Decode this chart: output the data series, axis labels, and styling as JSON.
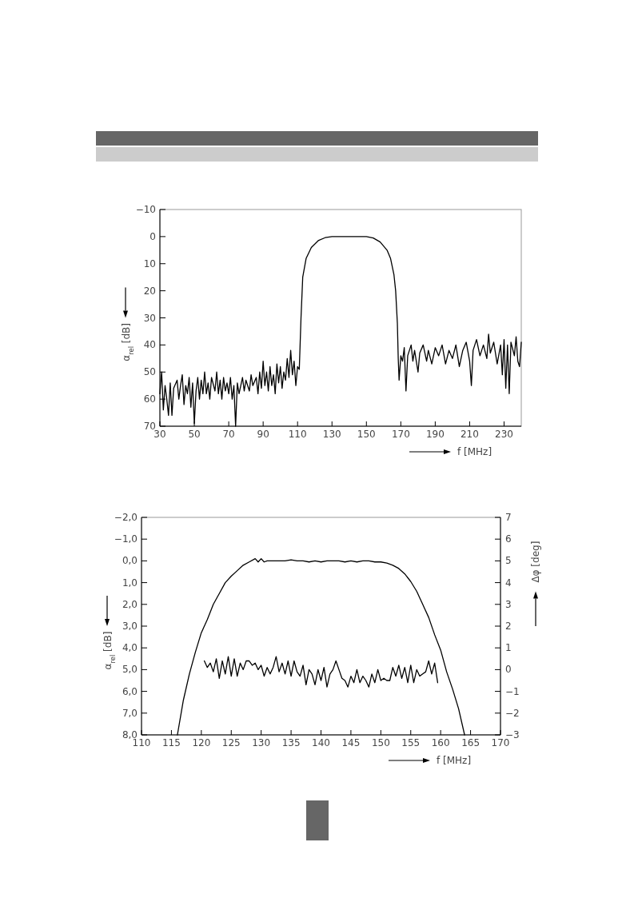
{
  "chart_data": [
    {
      "type": "line",
      "ylabel": "α$_{rel}$ [dB]",
      "xlabel": "f [MHz]",
      "xlim": [
        30,
        240
      ],
      "xticks": [
        30,
        50,
        70,
        90,
        110,
        130,
        150,
        170,
        190,
        210,
        230
      ],
      "ylim": [
        70,
        -10
      ],
      "yticks": [
        {
          "value": -10,
          "label": "−10"
        },
        0,
        10,
        20,
        30,
        40,
        50,
        60,
        70
      ],
      "series": [
        {
          "color": "#000000",
          "x": [
            30,
            31,
            32,
            33,
            34,
            35,
            36,
            37,
            38,
            40,
            41,
            42,
            43,
            44,
            45,
            46,
            47,
            48,
            49,
            50,
            51,
            52,
            53,
            54,
            55,
            56,
            57,
            58,
            59,
            60,
            62,
            63,
            64,
            65,
            66,
            67,
            68,
            69,
            70,
            71,
            72,
            73,
            74,
            75,
            76,
            78,
            79,
            80,
            82,
            83,
            84,
            86,
            87,
            88,
            89,
            90,
            91,
            92,
            93,
            94,
            95,
            96,
            97,
            98,
            99,
            100,
            101,
            102,
            103,
            104,
            105,
            106,
            107,
            108,
            109,
            110,
            111,
            112,
            113,
            115,
            118,
            122,
            126,
            130,
            140,
            150,
            154,
            158,
            162,
            164,
            166,
            167,
            168,
            168.5,
            169,
            170,
            171,
            172,
            173,
            174,
            176,
            177,
            178,
            180,
            181,
            183,
            185,
            186,
            188,
            190,
            192,
            194,
            196,
            198,
            200,
            202,
            204,
            206,
            208,
            210,
            211,
            212,
            214,
            216,
            218,
            220,
            221,
            222,
            224,
            226,
            228,
            229,
            230,
            231,
            232,
            233,
            234,
            236,
            237,
            238,
            239,
            240
          ],
          "values": [
            58,
            50,
            64,
            55,
            60,
            66,
            54,
            66,
            56,
            53,
            60,
            55,
            51,
            62,
            55,
            58,
            52,
            63,
            54,
            69,
            57,
            52,
            60,
            53,
            58,
            50,
            58,
            54,
            60,
            52,
            57,
            50,
            58,
            53,
            60,
            52,
            57,
            54,
            58,
            52,
            60,
            55,
            70,
            54,
            58,
            52,
            57,
            53,
            57,
            51,
            55,
            52,
            58,
            50,
            56,
            46,
            55,
            50,
            57,
            48,
            55,
            51,
            58,
            47,
            54,
            48,
            56,
            50,
            53,
            45,
            52,
            42,
            51,
            46,
            55,
            48,
            49,
            30,
            15,
            8,
            4,
            1.5,
            0.4,
            0,
            0,
            0,
            0.5,
            2,
            5,
            8,
            14,
            20,
            32,
            45,
            53,
            44,
            46,
            41,
            57,
            44,
            40,
            46,
            42,
            50,
            43,
            40,
            46,
            42,
            47,
            41,
            44,
            40,
            47,
            42,
            45,
            40,
            48,
            42,
            39,
            46,
            55,
            42,
            38,
            44,
            40,
            45,
            36,
            43,
            39,
            47,
            40,
            51,
            38,
            56,
            40,
            58,
            39,
            44,
            37,
            46,
            48,
            39
          ]
        }
      ]
    },
    {
      "type": "line",
      "ylabel": "α$_{rel}$ [dB]",
      "y2label": "Δφ [deg]",
      "xlabel": "f [MHz]",
      "xlim": [
        110,
        170
      ],
      "xticks": [
        110,
        115,
        120,
        125,
        130,
        135,
        140,
        145,
        150,
        155,
        160,
        165,
        170
      ],
      "ylim": [
        8,
        -2
      ],
      "yticks": [
        {
          "value": -2,
          "label": "−2,0"
        },
        {
          "value": -1,
          "label": "−1,0"
        },
        {
          "value": 0,
          "label": "0,0"
        },
        {
          "value": 1,
          "label": "1,0"
        },
        {
          "value": 2,
          "label": "2,0"
        },
        {
          "value": 3,
          "label": "3,0"
        },
        {
          "value": 4,
          "label": "4,0"
        },
        {
          "value": 5,
          "label": "5,0"
        },
        {
          "value": 6,
          "label": "6,0"
        },
        {
          "value": 7,
          "label": "7,0"
        },
        {
          "value": 8,
          "label": "8,0"
        }
      ],
      "y2lim": [
        -3,
        7
      ],
      "y2ticks": [
        {
          "value": -3,
          "label": "−3"
        },
        {
          "value": -2,
          "label": "−2"
        },
        {
          "value": -1,
          "label": "−1"
        },
        0,
        1,
        2,
        3,
        4,
        5,
        6,
        7
      ],
      "series": [
        {
          "color": "#000000",
          "x": [
            116,
            117,
            118,
            119,
            120,
            121,
            122,
            123,
            124,
            125,
            126,
            127,
            128,
            129,
            129.5,
            130,
            130.5,
            131,
            132,
            133,
            134,
            135,
            136,
            137,
            138,
            139,
            140,
            141,
            142,
            143,
            144,
            145,
            146,
            147,
            148,
            149,
            150,
            151,
            152,
            153,
            154,
            155,
            156,
            157,
            158,
            159,
            160,
            161,
            162,
            163,
            164
          ],
          "values": [
            8,
            6.4,
            5.2,
            4.2,
            3.3,
            2.7,
            2,
            1.5,
            1,
            0.7,
            0.45,
            0.2,
            0.05,
            -0.1,
            0.05,
            -0.1,
            0.05,
            0,
            0,
            0,
            0,
            -0.05,
            0,
            0,
            0.05,
            0,
            0.05,
            0,
            0,
            0,
            0.05,
            0,
            0.05,
            0,
            0,
            0.05,
            0.05,
            0.1,
            0.2,
            0.35,
            0.6,
            0.95,
            1.4,
            2,
            2.6,
            3.4,
            4.1,
            5.1,
            5.9,
            6.8,
            8
          ]
        },
        {
          "color": "#000000",
          "axis": "y2",
          "x": [
            120.5,
            121,
            121.5,
            122,
            122.5,
            123,
            123.5,
            124,
            124.5,
            125,
            125.5,
            126,
            126.5,
            127,
            127.5,
            128,
            128.5,
            129,
            129.5,
            130,
            130.5,
            131,
            131.5,
            132,
            132.5,
            133,
            133.5,
            134,
            134.5,
            135,
            135.5,
            136,
            136.5,
            137,
            137.5,
            138,
            138.5,
            139,
            139.5,
            140,
            140.5,
            141,
            141.5,
            142,
            142.5,
            143,
            143.5,
            144,
            144.5,
            145,
            145.5,
            146,
            146.5,
            147,
            147.5,
            148,
            148.5,
            149,
            149.5,
            150,
            150.5,
            151,
            151.5,
            152,
            152.5,
            153,
            153.5,
            154,
            154.5,
            155,
            155.5,
            156,
            156.5,
            157,
            157.5,
            158,
            158.5,
            159,
            159.5
          ],
          "values": [
            0.4,
            0.1,
            0.3,
            -0.1,
            0.5,
            -0.4,
            0.4,
            -0.2,
            0.6,
            -0.3,
            0.5,
            -0.3,
            0.3,
            0,
            0.4,
            0.4,
            0.2,
            0.3,
            0,
            0.2,
            -0.3,
            0.1,
            -0.2,
            0.1,
            0.6,
            -0.1,
            0.3,
            -0.2,
            0.4,
            -0.3,
            0.4,
            -0.1,
            -0.3,
            0.2,
            -0.7,
            0,
            -0.2,
            -0.7,
            0,
            -0.5,
            0.1,
            -0.8,
            -0.2,
            0,
            0.4,
            0,
            -0.4,
            -0.5,
            -0.8,
            -0.3,
            -0.6,
            0,
            -0.6,
            -0.3,
            -0.5,
            -0.8,
            -0.2,
            -0.6,
            0,
            -0.5,
            -0.4,
            -0.5,
            -0.5,
            0.1,
            -0.3,
            0.2,
            -0.4,
            0.1,
            -0.6,
            0.2,
            -0.6,
            0,
            -0.3,
            -0.2,
            -0.1,
            0.4,
            -0.2,
            0.3,
            -0.6
          ]
        }
      ]
    }
  ]
}
